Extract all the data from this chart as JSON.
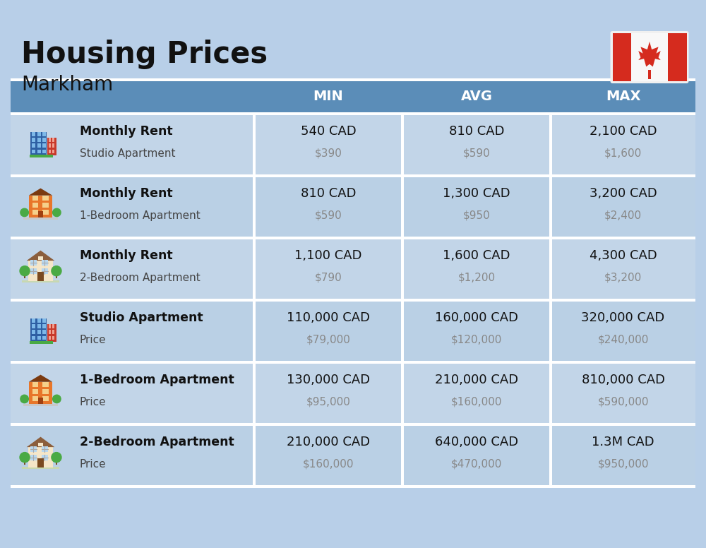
{
  "title": "Housing Prices",
  "subtitle": "Markham",
  "background_color": "#b8cfe8",
  "header_bg_color": "#5b8db8",
  "header_text_color": "#ffffff",
  "row_bg_light": "#c2d5e8",
  "row_bg_dark": "#bad0e5",
  "white": "#ffffff",
  "text_dark": "#111111",
  "text_sub": "#888888",
  "text_label_sub": "#444444",
  "headers": [
    "MIN",
    "AVG",
    "MAX"
  ],
  "rows": [
    {
      "icon_type": "office_blue",
      "label_bold": "Monthly Rent",
      "label_sub": "Studio Apartment",
      "min_main": "540 CAD",
      "min_sub": "$390",
      "avg_main": "810 CAD",
      "avg_sub": "$590",
      "max_main": "2,100 CAD",
      "max_sub": "$1,600"
    },
    {
      "icon_type": "apartment_orange",
      "label_bold": "Monthly Rent",
      "label_sub": "1-Bedroom Apartment",
      "min_main": "810 CAD",
      "min_sub": "$590",
      "avg_main": "1,300 CAD",
      "avg_sub": "$950",
      "max_main": "3,200 CAD",
      "max_sub": "$2,400"
    },
    {
      "icon_type": "house_beige",
      "label_bold": "Monthly Rent",
      "label_sub": "2-Bedroom Apartment",
      "min_main": "1,100 CAD",
      "min_sub": "$790",
      "avg_main": "1,600 CAD",
      "avg_sub": "$1,200",
      "max_main": "4,300 CAD",
      "max_sub": "$3,200"
    },
    {
      "icon_type": "office_blue",
      "label_bold": "Studio Apartment",
      "label_sub": "Price",
      "min_main": "110,000 CAD",
      "min_sub": "$79,000",
      "avg_main": "160,000 CAD",
      "avg_sub": "$120,000",
      "max_main": "320,000 CAD",
      "max_sub": "$240,000"
    },
    {
      "icon_type": "apartment_orange",
      "label_bold": "1-Bedroom Apartment",
      "label_sub": "Price",
      "min_main": "130,000 CAD",
      "min_sub": "$95,000",
      "avg_main": "210,000 CAD",
      "avg_sub": "$160,000",
      "max_main": "810,000 CAD",
      "max_sub": "$590,000"
    },
    {
      "icon_type": "house_beige",
      "label_bold": "2-Bedroom Apartment",
      "label_sub": "Price",
      "min_main": "210,000 CAD",
      "min_sub": "$160,000",
      "avg_main": "640,000 CAD",
      "avg_sub": "$470,000",
      "max_main": "1.3M CAD",
      "max_sub": "$950,000"
    }
  ]
}
